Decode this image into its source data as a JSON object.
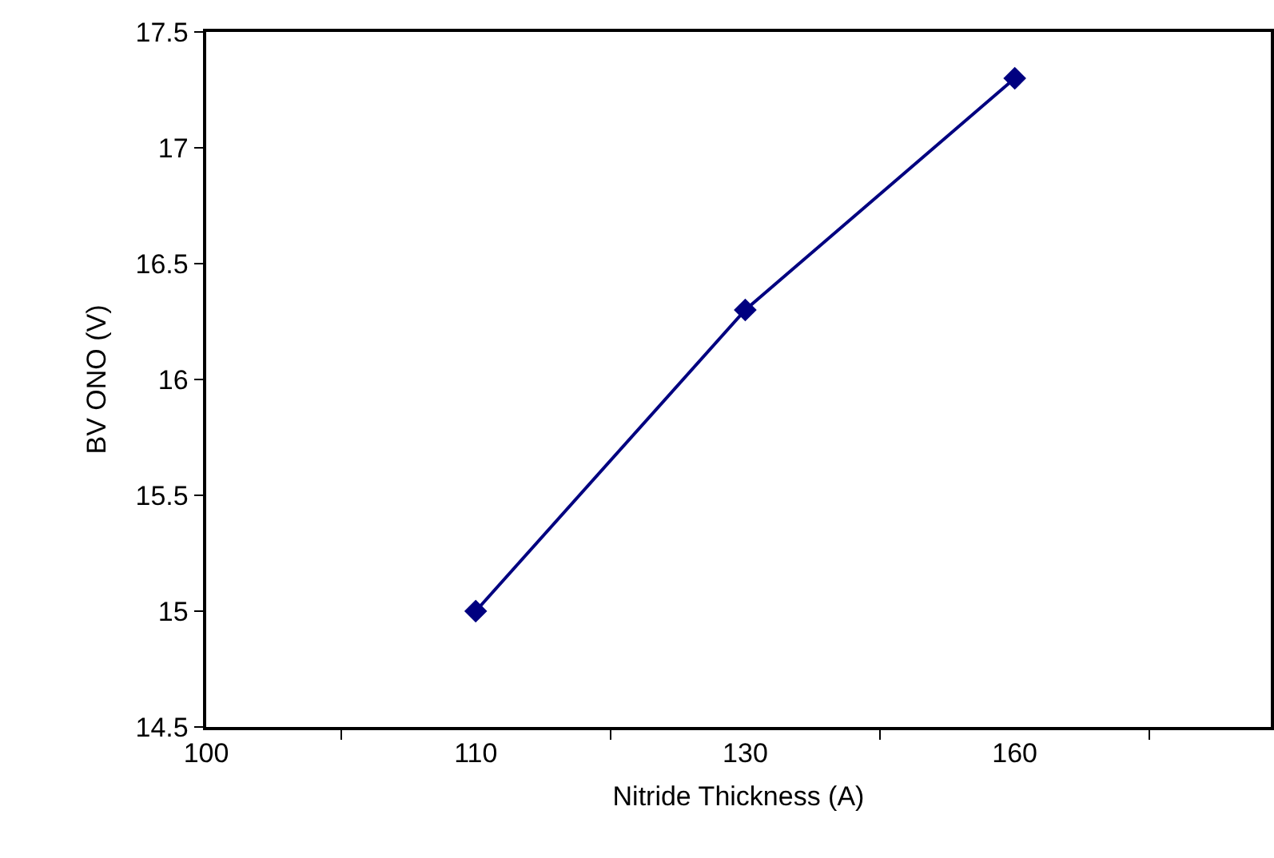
{
  "chart_data": {
    "type": "line",
    "categories": [
      "100",
      "110",
      "130",
      "160"
    ],
    "series": [
      {
        "color": "#000080",
        "values": [
          null,
          15,
          16.3,
          17.3
        ]
      }
    ],
    "xlabel": "Nitride Thickness (A)",
    "ylabel": "BV ONO (V)",
    "ylim": [
      14.5,
      17.5
    ],
    "yticks": [
      14.5,
      15,
      15.5,
      16,
      16.5,
      17,
      17.5
    ],
    "marker": "diamond",
    "line_style": "solid"
  }
}
